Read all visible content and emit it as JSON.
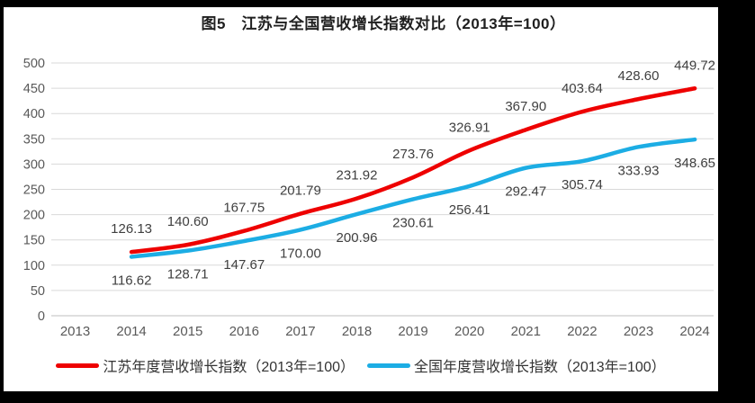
{
  "chart_data": {
    "type": "line",
    "title": "图5　江苏与全国营收增长指数对比（2013年=100）",
    "categories": [
      "2013",
      "2014",
      "2015",
      "2016",
      "2017",
      "2018",
      "2019",
      "2020",
      "2021",
      "2022",
      "2023",
      "2024"
    ],
    "y_axis": {
      "min": 0,
      "max": 500,
      "step": 50,
      "tick_labels": [
        "0",
        "50",
        "100",
        "150",
        "200",
        "250",
        "300",
        "350",
        "400",
        "450",
        "500"
      ]
    },
    "grid": true,
    "legend_position": "bottom",
    "series": [
      {
        "name": "江苏年度营收增长指数（2013年=100）",
        "color": "#ee0000",
        "label_position": "above",
        "values": [
          null,
          126.13,
          140.6,
          167.75,
          201.79,
          231.92,
          273.76,
          326.91,
          367.9,
          403.64,
          428.6,
          449.72
        ],
        "labels": [
          "",
          "126.13",
          "140.60",
          "167.75",
          "201.79",
          "231.92",
          "273.76",
          "326.91",
          "367.90",
          "403.64",
          "428.60",
          "449.72"
        ]
      },
      {
        "name": "全国年度营收增长指数（2013年=100）",
        "color": "#1cade4",
        "label_position": "below",
        "values": [
          null,
          116.62,
          128.71,
          147.67,
          170.0,
          200.96,
          230.61,
          256.41,
          292.47,
          305.74,
          333.93,
          348.65
        ],
        "labels": [
          "",
          "116.62",
          "128.71",
          "147.67",
          "170.00",
          "200.96",
          "230.61",
          "256.41",
          "292.47",
          "305.74",
          "333.93",
          "348.65"
        ]
      }
    ],
    "colors": {
      "gridline": "#d9d9d9",
      "axis_line": "#bfbfbf",
      "tick_text": "#595959",
      "data_label_text": "#3f3f3f"
    }
  }
}
